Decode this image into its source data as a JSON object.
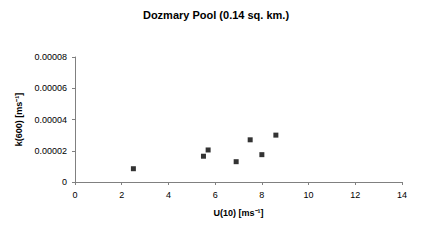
{
  "chart_data": {
    "type": "scatter",
    "title": "Dozmary Pool (0.14 sq. km.)",
    "x_label": "U(10) [ms⁻¹]",
    "y_label": "k(600) [ms⁻¹]",
    "x": [
      2.5,
      5.5,
      5.7,
      6.9,
      7.5,
      8.0,
      8.6
    ],
    "values": [
      8.5e-06,
      1.65e-05,
      2.05e-05,
      1.3e-05,
      2.7e-05,
      1.75e-05,
      3e-05
    ],
    "color": "#000000",
    "marker": "square",
    "xlim": [
      0,
      14
    ],
    "xticks": [
      0,
      2,
      4,
      6,
      8,
      10,
      12,
      14
    ],
    "ylim": [
      0,
      8e-05
    ],
    "yticks": [
      0,
      2e-05,
      4e-05,
      6e-05,
      8e-05
    ],
    "grid": false
  }
}
